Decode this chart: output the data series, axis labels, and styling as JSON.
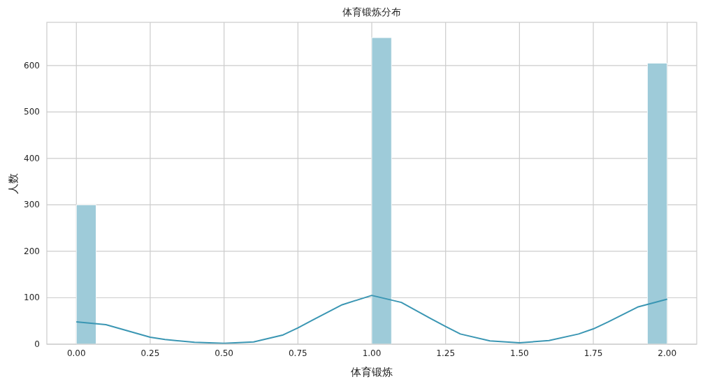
{
  "chart_data": {
    "type": "histogram",
    "title": "体育锻炼分布",
    "xlabel": "体育锻炼",
    "ylabel": "人数",
    "xlim": [
      -0.1,
      2.1
    ],
    "ylim": [
      0,
      693
    ],
    "xticks": [
      {
        "value": 0,
        "label": "0.00"
      },
      {
        "value": 0.25,
        "label": "0.25"
      },
      {
        "value": 0.5,
        "label": "0.50"
      },
      {
        "value": 0.75,
        "label": "0.75"
      },
      {
        "value": 1,
        "label": "1.00"
      },
      {
        "value": 1.25,
        "label": "1.25"
      },
      {
        "value": 1.5,
        "label": "1.50"
      },
      {
        "value": 1.75,
        "label": "1.75"
      },
      {
        "value": 2,
        "label": "2.00"
      }
    ],
    "yticks": [
      0,
      100,
      200,
      300,
      400,
      500,
      600
    ],
    "grid": true,
    "series": [
      {
        "type": "histogram",
        "color": "#9ecbd9",
        "bins": [
          0,
          0.0667,
          0.1333,
          0.2,
          0.2667,
          0.3333,
          0.4,
          0.4667,
          0.5333,
          0.6,
          0.6667,
          0.7333,
          0.8,
          0.8667,
          0.9333,
          1,
          1.0667,
          1.1333,
          1.2,
          1.2667,
          1.3333,
          1.4,
          1.4667,
          1.5333,
          1.6,
          1.6667,
          1.7333,
          1.8,
          1.8667,
          1.9333,
          2
        ],
        "values": [
          300,
          0,
          0,
          0,
          0,
          0,
          0,
          0,
          0,
          0,
          0,
          0,
          0,
          0,
          0,
          660,
          0,
          0,
          0,
          0,
          0,
          0,
          0,
          0,
          0,
          0,
          0,
          0,
          0,
          605
        ]
      },
      {
        "type": "line",
        "color": "#3a96b3",
        "x": [
          0,
          0.1,
          0.2,
          0.25,
          0.3,
          0.4,
          0.5,
          0.6,
          0.7,
          0.75,
          0.8,
          0.9,
          1,
          1.1,
          1.2,
          1.25,
          1.3,
          1.4,
          1.5,
          1.6,
          1.7,
          1.75,
          1.8,
          1.9,
          2
        ],
        "values": [
          48,
          42,
          24,
          15,
          10,
          4,
          2,
          5,
          20,
          35,
          52,
          85,
          105,
          90,
          55,
          38,
          22,
          7,
          3,
          8,
          22,
          33,
          48,
          80,
          97
        ]
      }
    ]
  }
}
